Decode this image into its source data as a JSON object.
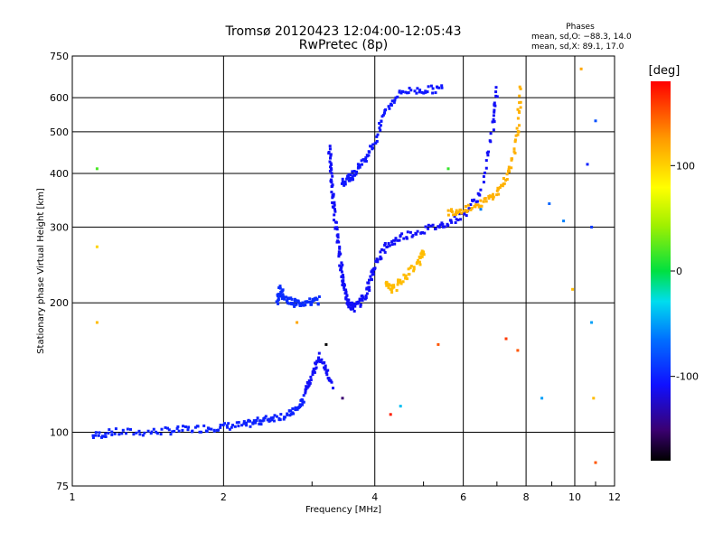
{
  "chart_data": {
    "type": "scatter",
    "title": "Tromsø 20120423 12:04:00-12:05:43",
    "subtitle": "RwPretec (8p)",
    "xlabel": "Frequency [MHz]",
    "ylabel": "Stationary phase Virtual Height [km]",
    "x_scale": "log",
    "y_scale": "log",
    "xlim": [
      1,
      12
    ],
    "ylim": [
      75,
      750
    ],
    "x_ticks": [
      1,
      2,
      4,
      6,
      8,
      10,
      12
    ],
    "y_ticks": [
      75,
      100,
      200,
      300,
      400,
      500,
      600,
      750
    ],
    "grid": true,
    "phase_info": {
      "title": "Phases",
      "line_o": "mean, sd,O: −88.3, 14.0",
      "line_x": "mean, sd,X:  89.1, 17.0"
    },
    "colorbar": {
      "label": "[deg]",
      "ticks": [
        100,
        0,
        -100
      ],
      "range": [
        -180,
        180
      ]
    },
    "traces": [
      {
        "phase_deg": -100,
        "points": [
          [
            1.1,
            98
          ],
          [
            1.2,
            100
          ],
          [
            1.4,
            100
          ],
          [
            1.6,
            101
          ],
          [
            1.8,
            102
          ],
          [
            2.0,
            103
          ],
          [
            2.2,
            104
          ],
          [
            2.35,
            106
          ],
          [
            2.5,
            108
          ],
          [
            2.7,
            110
          ],
          [
            2.82,
            114
          ],
          [
            2.9,
            120
          ]
        ]
      },
      {
        "phase_deg": -110,
        "points": [
          [
            2.9,
            125
          ],
          [
            3.0,
            135
          ],
          [
            3.1,
            150
          ],
          [
            3.2,
            140
          ],
          [
            3.3,
            128
          ]
        ]
      },
      {
        "phase_deg": -95,
        "points": [
          [
            2.55,
            200
          ],
          [
            2.6,
            215
          ],
          [
            2.65,
            205
          ],
          [
            2.75,
            200
          ],
          [
            2.85,
            200
          ],
          [
            3.0,
            201
          ],
          [
            3.1,
            203
          ]
        ]
      },
      {
        "phase_deg": -110,
        "points": [
          [
            3.25,
            460
          ],
          [
            3.28,
            400
          ],
          [
            3.3,
            350
          ],
          [
            3.35,
            300
          ],
          [
            3.4,
            260
          ],
          [
            3.45,
            230
          ],
          [
            3.5,
            210
          ],
          [
            3.55,
            198
          ],
          [
            3.65,
            195
          ],
          [
            3.8,
            205
          ],
          [
            3.9,
            220
          ],
          [
            4.0,
            245
          ],
          [
            4.2,
            270
          ],
          [
            4.5,
            285
          ],
          [
            5.0,
            295
          ],
          [
            5.5,
            305
          ],
          [
            6.0,
            320
          ],
          [
            6.5,
            360
          ],
          [
            6.9,
            520
          ],
          [
            7.0,
            640
          ]
        ]
      },
      {
        "phase_deg": -105,
        "points": [
          [
            3.45,
            380
          ],
          [
            3.55,
            390
          ],
          [
            3.65,
            400
          ],
          [
            3.8,
            430
          ],
          [
            4.0,
            470
          ],
          [
            4.2,
            560
          ],
          [
            4.5,
            620
          ],
          [
            5.0,
            625
          ],
          [
            5.5,
            630
          ]
        ]
      },
      {
        "phase_deg": 115,
        "points": [
          [
            5.6,
            325
          ],
          [
            6.0,
            330
          ],
          [
            6.5,
            340
          ],
          [
            7.0,
            360
          ],
          [
            7.4,
            400
          ],
          [
            7.7,
            500
          ],
          [
            7.8,
            640
          ]
        ]
      },
      {
        "phase_deg": 110,
        "points": [
          [
            4.2,
            220
          ],
          [
            4.35,
            215
          ],
          [
            4.6,
            230
          ],
          [
            4.9,
            250
          ],
          [
            5.0,
            265
          ]
        ]
      }
    ],
    "scatter_points": [
      {
        "x": 1.12,
        "y": 410,
        "phase_deg": 20
      },
      {
        "x": 1.12,
        "y": 270,
        "phase_deg": 100
      },
      {
        "x": 1.12,
        "y": 180,
        "phase_deg": 110
      },
      {
        "x": 2.8,
        "y": 180,
        "phase_deg": 120
      },
      {
        "x": 3.2,
        "y": 160,
        "phase_deg": -180
      },
      {
        "x": 3.45,
        "y": 120,
        "phase_deg": -150
      },
      {
        "x": 4.3,
        "y": 110,
        "phase_deg": 170
      },
      {
        "x": 4.5,
        "y": 115,
        "phase_deg": -40
      },
      {
        "x": 5.35,
        "y": 160,
        "phase_deg": 150
      },
      {
        "x": 5.6,
        "y": 410,
        "phase_deg": 15
      },
      {
        "x": 6.5,
        "y": 330,
        "phase_deg": -60
      },
      {
        "x": 7.3,
        "y": 165,
        "phase_deg": 160
      },
      {
        "x": 7.7,
        "y": 155,
        "phase_deg": 150
      },
      {
        "x": 8.6,
        "y": 120,
        "phase_deg": -50
      },
      {
        "x": 8.9,
        "y": 340,
        "phase_deg": -70
      },
      {
        "x": 9.5,
        "y": 310,
        "phase_deg": -60
      },
      {
        "x": 9.9,
        "y": 215,
        "phase_deg": 110
      },
      {
        "x": 10.3,
        "y": 700,
        "phase_deg": 120
      },
      {
        "x": 10.6,
        "y": 420,
        "phase_deg": -100
      },
      {
        "x": 10.8,
        "y": 300,
        "phase_deg": -90
      },
      {
        "x": 10.8,
        "y": 180,
        "phase_deg": -50
      },
      {
        "x": 10.9,
        "y": 120,
        "phase_deg": 110
      },
      {
        "x": 11.0,
        "y": 530,
        "phase_deg": -80
      },
      {
        "x": 11.0,
        "y": 85,
        "phase_deg": 150
      }
    ]
  }
}
